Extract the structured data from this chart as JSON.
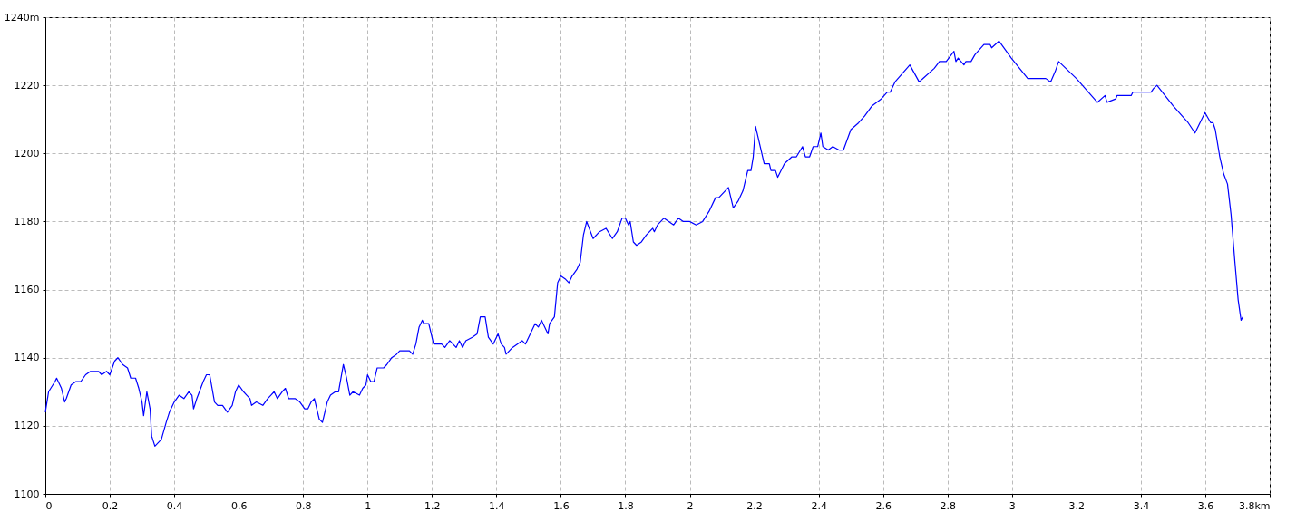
{
  "chart_data": {
    "type": "line",
    "xlim": [
      0,
      3.8
    ],
    "ylim": [
      1100,
      1240
    ],
    "xticks": [
      0,
      0.2,
      0.4,
      0.6,
      0.8,
      1,
      1.2,
      1.4,
      1.6,
      1.8,
      2,
      2.2,
      2.4,
      2.6,
      2.8,
      3,
      3.2,
      3.4,
      3.6,
      {
        "value": 3.8,
        "label": "3.8km"
      }
    ],
    "yticks": [
      1100,
      1120,
      1140,
      1160,
      1180,
      1200,
      1220,
      {
        "value": 1240,
        "label": "1240m"
      }
    ],
    "grid": true,
    "series": [
      {
        "color": "#0000ff",
        "x": [
          0,
          0.01,
          0.03,
          0.035,
          0.045,
          0.05,
          0.06,
          0.065,
          0.08,
          0.095,
          0.11,
          0.125,
          0.14,
          0.165,
          0.175,
          0.19,
          0.2,
          0.215,
          0.225,
          0.24,
          0.255,
          0.265,
          0.28,
          0.29,
          0.3,
          0.305,
          0.315,
          0.325,
          0.33,
          0.34,
          0.35,
          0.36,
          0.375,
          0.385,
          0.4,
          0.415,
          0.43,
          0.445,
          0.455,
          0.46,
          0.47,
          0.49,
          0.5,
          0.51,
          0.525,
          0.535,
          0.55,
          0.565,
          0.58,
          0.59,
          0.6,
          0.615,
          0.625,
          0.635,
          0.64,
          0.655,
          0.675,
          0.69,
          0.7,
          0.71,
          0.72,
          0.735,
          0.745,
          0.755,
          0.775,
          0.79,
          0.805,
          0.815,
          0.825,
          0.835,
          0.85,
          0.86,
          0.875,
          0.885,
          0.9,
          0.91,
          0.925,
          0.935,
          0.945,
          0.955,
          0.975,
          0.985,
          0.995,
          1,
          1.01,
          1.02,
          1.03,
          1.05,
          1.06,
          1.075,
          1.09,
          1.1,
          1.13,
          1.14,
          1.15,
          1.16,
          1.17,
          1.175,
          1.19,
          1.205,
          1.215,
          1.23,
          1.24,
          1.255,
          1.265,
          1.275,
          1.285,
          1.295,
          1.305,
          1.325,
          1.34,
          1.35,
          1.365,
          1.375,
          1.39,
          1.405,
          1.415,
          1.425,
          1.43,
          1.45,
          1.465,
          1.48,
          1.49,
          1.505,
          1.52,
          1.53,
          1.54,
          1.55,
          1.56,
          1.565,
          1.58,
          1.59,
          1.6,
          1.615,
          1.625,
          1.635,
          1.65,
          1.66,
          1.67,
          1.68,
          1.7,
          1.72,
          1.74,
          1.76,
          1.775,
          1.79,
          1.8,
          1.81,
          1.815,
          1.825,
          1.835,
          1.85,
          1.865,
          1.885,
          1.89,
          1.9,
          1.91,
          1.92,
          1.95,
          1.965,
          1.98,
          2,
          2.02,
          2.04,
          2.06,
          2.08,
          2.09,
          2.12,
          2.135,
          2.15,
          2.165,
          2.18,
          2.19,
          2.197,
          2.204,
          2.231,
          2.247,
          2.252,
          2.266,
          2.273,
          2.294,
          2.317,
          2.331,
          2.35,
          2.359,
          2.372,
          2.383,
          2.397,
          2.407,
          2.413,
          2.43,
          2.444,
          2.463,
          2.477,
          2.5,
          2.524,
          2.543,
          2.566,
          2.594,
          2.613,
          2.622,
          2.637,
          2.683,
          2.712,
          2.759,
          2.775,
          2.796,
          2.82,
          2.826,
          2.833,
          2.851,
          2.857,
          2.873,
          2.885,
          2.913,
          2.932,
          2.937,
          2.96,
          2.998,
          3.049,
          3.105,
          3.12,
          3.134,
          3.145,
          3.2,
          3.265,
          3.289,
          3.295,
          3.322,
          3.326,
          3.37,
          3.375,
          3.432,
          3.439,
          3.45,
          3.5,
          3.528,
          3.547,
          3.568,
          3.599,
          3.617,
          3.624,
          3.631,
          3.645,
          3.657,
          3.669,
          3.68,
          3.692,
          3.702,
          3.711,
          3.717
        ],
        "values": [
          1124,
          1130,
          1133,
          1134,
          1132,
          1131,
          1127,
          1128,
          1132,
          1133,
          1133,
          1135,
          1136,
          1136,
          1135,
          1136,
          1135,
          1139,
          1140,
          1138,
          1137,
          1134,
          1134,
          1131,
          1127,
          1123,
          1130,
          1125,
          1117,
          1114,
          1115,
          1116,
          1121,
          1124,
          1127,
          1129,
          1128,
          1130,
          1129,
          1125,
          1128,
          1133,
          1135,
          1135,
          1127,
          1126,
          1126,
          1124,
          1126,
          1130,
          1132,
          1130,
          1129,
          1128,
          1126,
          1127,
          1126,
          1128,
          1129,
          1130,
          1128,
          1130,
          1131,
          1128,
          1128,
          1127,
          1125,
          1125,
          1127,
          1128,
          1122,
          1121,
          1127,
          1129,
          1130,
          1130,
          1138,
          1134,
          1129,
          1130,
          1129,
          1131,
          1132,
          1135,
          1133,
          1133,
          1137,
          1137,
          1138,
          1140,
          1141,
          1142,
          1142,
          1141,
          1144,
          1149,
          1151,
          1150,
          1150,
          1144,
          1144,
          1144,
          1143,
          1145,
          1144,
          1143,
          1145,
          1143,
          1145,
          1146,
          1147,
          1152,
          1152,
          1146,
          1144,
          1147,
          1144,
          1143,
          1141,
          1143,
          1144,
          1145,
          1144,
          1147,
          1150,
          1149,
          1151,
          1149,
          1147,
          1150,
          1152,
          1162,
          1164,
          1163,
          1162,
          1164,
          1166,
          1168,
          1176,
          1180,
          1175,
          1177,
          1178,
          1175,
          1177,
          1181,
          1181,
          1179,
          1180,
          1174,
          1173,
          1174,
          1176,
          1178,
          1177,
          1179,
          1180,
          1181,
          1179,
          1181,
          1180,
          1180,
          1179,
          1180,
          1183,
          1187,
          1187,
          1190,
          1184,
          1186,
          1189,
          1195,
          1195,
          1199,
          1208,
          1197,
          1197,
          1195,
          1195,
          1193,
          1197,
          1199,
          1199,
          1202,
          1199,
          1199,
          1202,
          1202,
          1206,
          1202,
          1201,
          1202,
          1201,
          1201,
          1207,
          1209,
          1211,
          1214,
          1216,
          1218,
          1218,
          1221,
          1226,
          1221,
          1225,
          1227,
          1227,
          1230,
          1227,
          1228,
          1226,
          1227,
          1227,
          1229,
          1232,
          1232,
          1231,
          1233,
          1228,
          1222,
          1222,
          1221,
          1224,
          1227,
          1222,
          1215,
          1217,
          1215,
          1216,
          1217,
          1217,
          1218,
          1218,
          1219,
          1220,
          1214,
          1211,
          1209,
          1206,
          1212,
          1209,
          1209,
          1207,
          1199,
          1194,
          1191,
          1182,
          1168,
          1157,
          1151,
          1152
        ]
      }
    ]
  }
}
